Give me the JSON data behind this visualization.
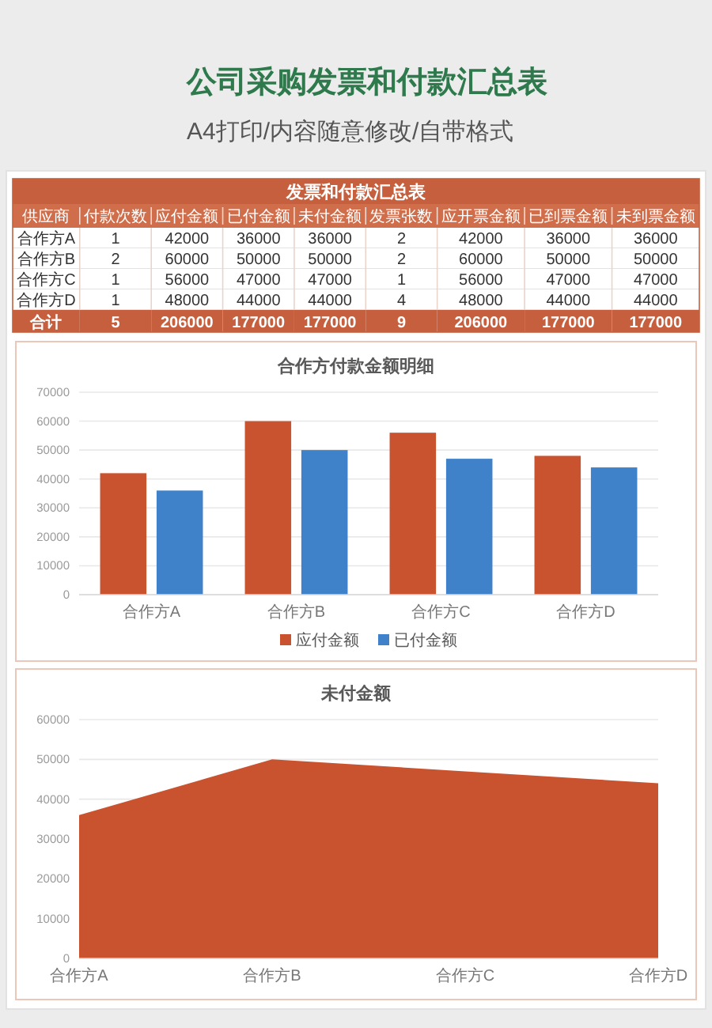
{
  "chart_data": [
    {
      "type": "other",
      "title": "公司采购发票和付款汇总表",
      "subtitle": "A4打印/内容随意修改/自带格式"
    },
    {
      "type": "other",
      "title": "发票和付款汇总表",
      "ylabel": "供应商",
      "categories": [
        "合作方A",
        "合作方B",
        "合作方C",
        "合作方D",
        "合计"
      ],
      "data_labels": true,
      "series": [
        {
          "name": "付款次数",
          "colors": [
            "#ffffff",
            "#ffffff",
            "#ffffff",
            "#ffffff",
            "#c65f3d"
          ],
          "values": [
            1,
            2,
            1,
            1,
            5
          ]
        },
        {
          "name": "应付金额",
          "colors": [
            "#ffffff",
            "#ffffff",
            "#ffffff",
            "#ffffff",
            "#c65f3d"
          ],
          "values": [
            42000,
            60000,
            56000,
            48000,
            206000
          ]
        },
        {
          "name": "已付金额",
          "colors": [
            "#ffffff",
            "#ffffff",
            "#ffffff",
            "#ffffff",
            "#c65f3d"
          ],
          "values": [
            36000,
            50000,
            47000,
            44000,
            177000
          ]
        },
        {
          "name": "未付金额",
          "colors": [
            "#ffffff",
            "#ffffff",
            "#ffffff",
            "#ffffff",
            "#c65f3d"
          ],
          "values": [
            36000,
            50000,
            47000,
            44000,
            177000
          ]
        },
        {
          "name": "发票张数",
          "colors": [
            "#ffffff",
            "#ffffff",
            "#ffffff",
            "#ffffff",
            "#c65f3d"
          ],
          "values": [
            2,
            2,
            1,
            4,
            9
          ]
        },
        {
          "name": "应开票金额",
          "colors": [
            "#ffffff",
            "#ffffff",
            "#ffffff",
            "#ffffff",
            "#c65f3d"
          ],
          "values": [
            42000,
            60000,
            56000,
            48000,
            206000
          ]
        },
        {
          "name": "已到票金额",
          "colors": [
            "#ffffff",
            "#ffffff",
            "#ffffff",
            "#ffffff",
            "#c65f3d"
          ],
          "values": [
            36000,
            50000,
            47000,
            44000,
            177000
          ]
        },
        {
          "name": "未到票金额",
          "colors": [
            "#ffffff",
            "#ffffff",
            "#ffffff",
            "#ffffff",
            "#c65f3d"
          ],
          "values": [
            36000,
            50000,
            47000,
            44000,
            177000
          ]
        }
      ]
    },
    {
      "type": "bar",
      "title": "合作方付款金额明细",
      "categories": [
        "合作方A",
        "合作方B",
        "合作方C",
        "合作方D"
      ],
      "series": [
        {
          "name": "应付金额",
          "color": "#c9522f",
          "values": [
            42000,
            60000,
            56000,
            48000
          ]
        },
        {
          "name": "已付金额",
          "color": "#3f82c9",
          "values": [
            36000,
            50000,
            47000,
            44000
          ]
        }
      ],
      "ylim": [
        0,
        70000
      ],
      "yticks": [
        0,
        10000,
        20000,
        30000,
        40000,
        50000,
        60000,
        70000
      ],
      "grid": "y",
      "legend": "bottom"
    },
    {
      "type": "area",
      "title": "未付金额",
      "categories": [
        "合作方A",
        "合作方B",
        "合作方C",
        "合作方D"
      ],
      "series": [
        {
          "color": "#c9522f",
          "values": [
            36000,
            50000,
            47000,
            44000
          ]
        }
      ],
      "ylim": [
        0,
        60000
      ],
      "yticks": [
        0,
        10000,
        20000,
        30000,
        40000,
        50000,
        60000
      ],
      "grid": "y"
    }
  ]
}
